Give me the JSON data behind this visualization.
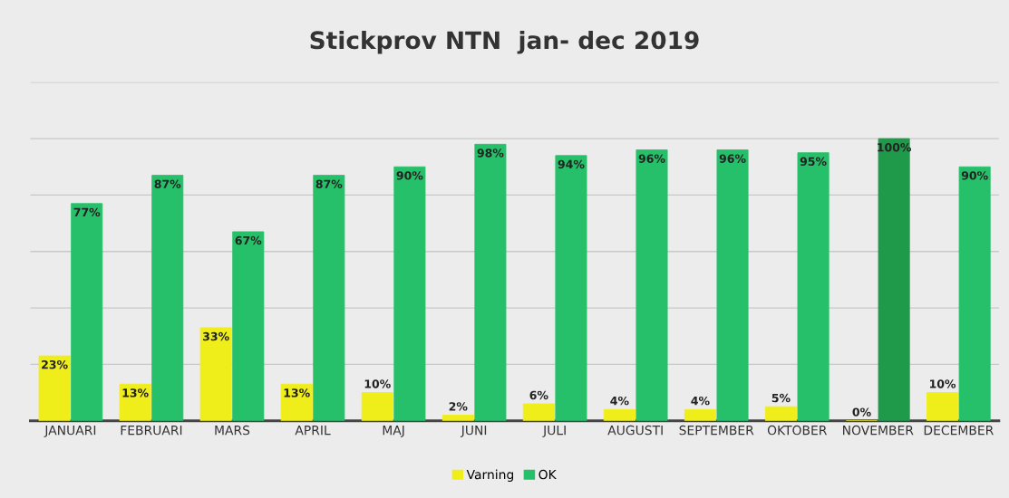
{
  "chart_data": {
    "type": "bar",
    "title": "Stickprov NTN  jan- dec 2019",
    "categories": [
      "JANUARI",
      "FEBRUARI",
      "MARS",
      "APRIL",
      "MAJ",
      "JUNI",
      "JULI",
      "AUGUSTI",
      "SEPTEMBER",
      "OKTOBER",
      "NOVEMBER",
      "DECEMBER"
    ],
    "series": [
      {
        "name": "Varning",
        "color": "#f0ee1a",
        "values": [
          23,
          13,
          33,
          13,
          10,
          2,
          6,
          4,
          4,
          5,
          0,
          10
        ],
        "value_labels": [
          "23%",
          "13%",
          "33%",
          "13%",
          "10%",
          "2%",
          "6%",
          "4%",
          "4%",
          "5%",
          "0%",
          "10%"
        ]
      },
      {
        "name": "OK",
        "color": "#27c06a",
        "colors": [
          "#27c06a",
          "#27c06a",
          "#27c06a",
          "#27c06a",
          "#27c06a",
          "#27c06a",
          "#27c06a",
          "#27c06a",
          "#27c06a",
          "#27c06a",
          "#1f9a4a",
          "#27c06a"
        ],
        "values": [
          77,
          87,
          67,
          87,
          90,
          98,
          94,
          96,
          96,
          95,
          100,
          90
        ],
        "value_labels": [
          "77%",
          "87%",
          "67%",
          "87%",
          "90%",
          "98%",
          "94%",
          "96%",
          "96%",
          "95%",
          "100%",
          "90%"
        ]
      }
    ],
    "ylim": [
      0,
      120
    ],
    "yticks": [
      {
        "value": 0,
        "label": null
      },
      {
        "value": 20,
        "label": null
      },
      {
        "value": 40,
        "label": null
      },
      {
        "value": 60,
        "label": null
      },
      {
        "value": 80,
        "label": null
      },
      {
        "value": 100,
        "label": null
      },
      {
        "value": 120,
        "label": null
      }
    ],
    "tick_labels": "x",
    "grid": "y",
    "legend": "bottom"
  }
}
